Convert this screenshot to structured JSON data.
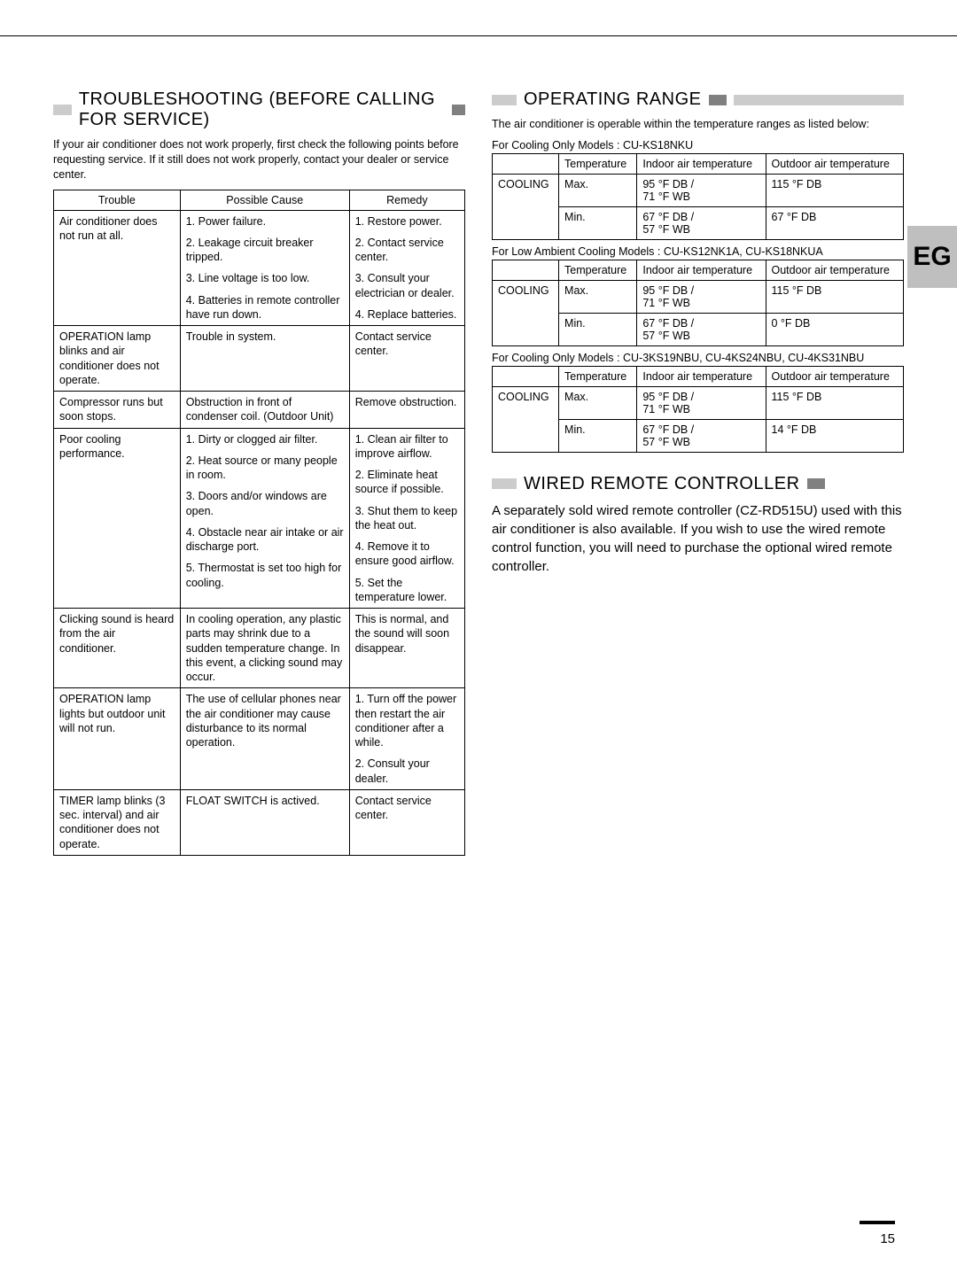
{
  "page_number": "15",
  "side_tab": "EG",
  "colors": {
    "bar_light": "#cccccc",
    "bar_mid": "#808080",
    "tab_bg": "#bfbfbf",
    "border": "#000000",
    "text": "#000000",
    "bg": "#ffffff"
  },
  "troubleshooting": {
    "heading": "TROUBLESHOOTING (BEFORE CALLING FOR SERVICE)",
    "intro": "If your air conditioner does not work properly, first check the following points before requesting service. If it still does not work properly, contact your dealer or service center.",
    "columns": [
      "Trouble",
      "Possible Cause",
      "Remedy"
    ],
    "rows": [
      {
        "trouble": "Air conditioner does not run at all.",
        "causes": [
          "1. Power failure.",
          "2. Leakage circuit breaker tripped.",
          "3. Line voltage is too low.",
          "4. Batteries in remote controller have run down."
        ],
        "remedies": [
          "1. Restore power.",
          "2. Contact service center.",
          "3. Consult your electrician or dealer.",
          "4. Replace batteries."
        ]
      },
      {
        "trouble": "OPERATION lamp blinks and air conditioner does not operate.",
        "causes": [
          "Trouble in system."
        ],
        "remedies": [
          "Contact service center."
        ]
      },
      {
        "trouble": "Compressor runs but soon stops.",
        "causes": [
          "Obstruction in front of condenser coil. (Outdoor Unit)"
        ],
        "remedies": [
          "Remove obstruction."
        ]
      },
      {
        "trouble": "Poor cooling performance.",
        "causes": [
          "1. Dirty or clogged air filter.",
          "2. Heat source or many people in room.",
          "3. Doors and/or windows are open.",
          "4. Obstacle near air intake or air discharge port.",
          "5. Thermostat is set too high for cooling."
        ],
        "remedies": [
          "1. Clean air filter to improve airflow.",
          "2. Eliminate heat source if possible.",
          "3. Shut them to keep the heat out.",
          "4. Remove it to ensure good airflow.",
          "5. Set the temperature lower."
        ]
      },
      {
        "trouble": "Clicking sound is heard from the air conditioner.",
        "causes": [
          "In cooling operation, any plastic parts may shrink due to a sudden temperature change. In this event, a clicking sound may occur."
        ],
        "remedies": [
          "This is normal, and the sound will soon disappear."
        ]
      },
      {
        "trouble": "OPERATION lamp lights but outdoor unit will not run.",
        "causes": [
          "The use of cellular phones near the air conditioner may cause disturbance to its normal operation."
        ],
        "remedies": [
          "1. Turn off the power then restart the air conditioner after a while.",
          "2. Consult your dealer."
        ]
      },
      {
        "trouble": "TIMER lamp blinks (3 sec. interval) and air conditioner does not operate.",
        "causes": [
          "FLOAT SWITCH is actived."
        ],
        "remedies": [
          "Contact service center."
        ]
      }
    ]
  },
  "operating_range": {
    "heading": "OPERATING RANGE",
    "intro": "The air conditioner is operable within the temperature ranges as listed below:",
    "common_headers": [
      "",
      "Temperature",
      "Indoor air temperature",
      "Outdoor air temperature"
    ],
    "tables": [
      {
        "caption": "For Cooling Only Models : CU-KS18NKU",
        "rows": [
          [
            "COOLING",
            "Max.",
            "95 °F DB / 71 °F WB",
            "115 °F DB"
          ],
          [
            "",
            "Min.",
            "67 °F DB / 57 °F WB",
            "67 °F DB"
          ]
        ]
      },
      {
        "caption": "For Low Ambient Cooling Models : CU-KS12NK1A, CU-KS18NKUA",
        "rows": [
          [
            "COOLING",
            "Max.",
            "95 °F DB / 71 °F WB",
            "115 °F DB"
          ],
          [
            "",
            "Min.",
            "67 °F DB / 57 °F WB",
            "0 °F DB"
          ]
        ]
      },
      {
        "caption": "For Cooling Only Models : CU-3KS19NBU, CU-4KS24NBU, CU-4KS31NBU",
        "rows": [
          [
            "COOLING",
            "Max.",
            "95 °F DB / 71 °F WB",
            "115 °F DB"
          ],
          [
            "",
            "Min.",
            "67 °F DB / 57 °F WB",
            "14 °F DB"
          ]
        ]
      }
    ]
  },
  "wired_remote": {
    "heading": "WIRED REMOTE CONTROLLER",
    "text": "A separately sold wired remote controller (CZ-RD515U) used with this air conditioner is also available. If you wish to use the wired remote control function, you will need to purchase the optional wired remote controller."
  }
}
